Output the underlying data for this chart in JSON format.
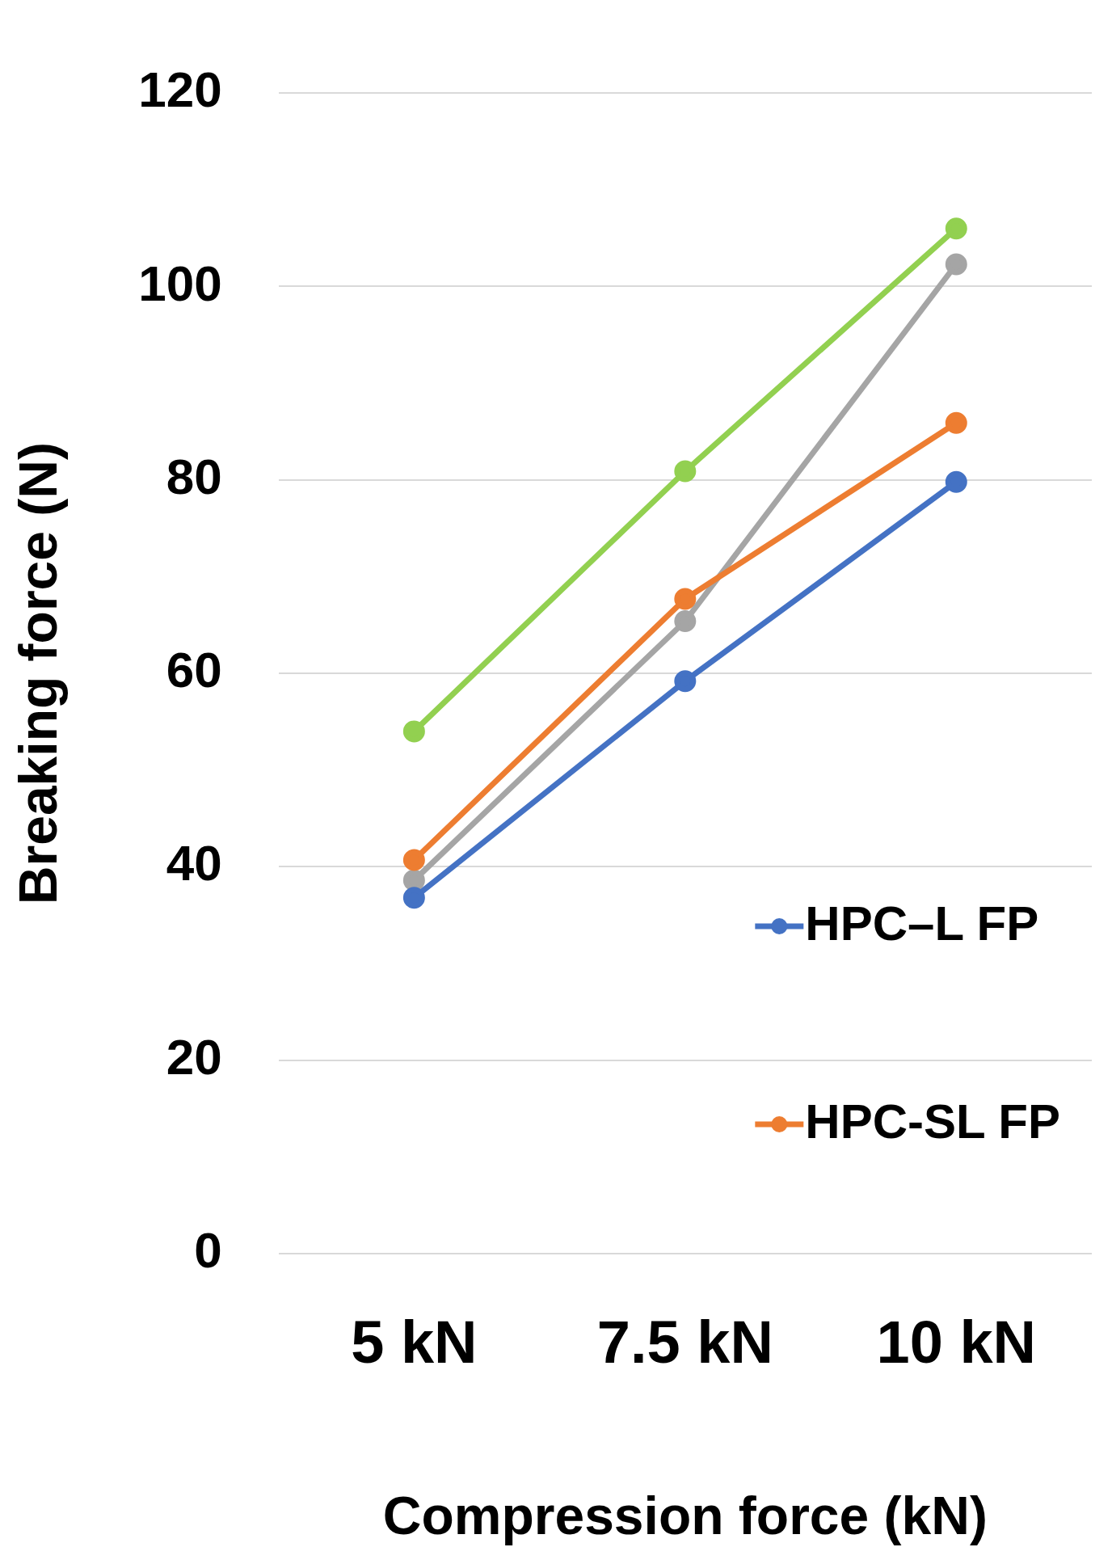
{
  "chart_data": {
    "type": "line",
    "xlabel": "Compression force (kN)",
    "ylabel": "Breaking force (N)",
    "categories": [
      "5 kN",
      "7.5 kN",
      "10 kN"
    ],
    "series": [
      {
        "name": "HPC–L FP",
        "color": "#4472c4",
        "values": [
          36.8,
          59.2,
          79.8
        ]
      },
      {
        "name": "HPC-SL FP",
        "color": "#ed7d31",
        "values": [
          40.7,
          67.7,
          85.9
        ]
      },
      {
        "color": "#a5a5a5",
        "values": [
          38.6,
          65.4,
          102.3
        ]
      },
      {
        "color": "#92d050",
        "values": [
          54.0,
          80.9,
          106.0
        ]
      }
    ],
    "ylim": [
      0,
      120
    ],
    "yticks": [
      0,
      20,
      40,
      60,
      80,
      100,
      120
    ],
    "grid": "y",
    "legend": "bottom right",
    "marker": "circle",
    "line_style": "solid"
  }
}
